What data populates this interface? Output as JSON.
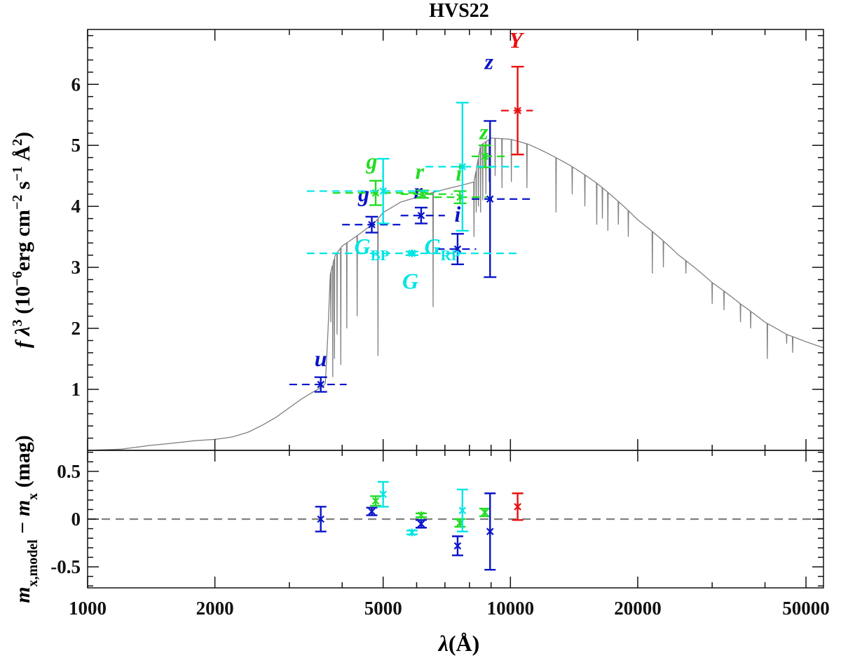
{
  "chart_data": {
    "type": "scatter",
    "title": "HVS22",
    "x_axis": {
      "label_symbol": "λ",
      "label_unit": "(Å)",
      "scale": "log",
      "range": [
        1000,
        55000
      ],
      "major_ticks": [
        1000,
        2000,
        5000,
        10000,
        20000,
        50000
      ],
      "tick_labels": [
        "1000",
        "2000",
        "5000",
        "10000",
        "20000",
        "50000"
      ]
    },
    "top_panel": {
      "ylabel_parts": [
        "f λ",
        "3",
        " (10",
        "−6",
        "erg cm",
        "−2",
        " s",
        "−1",
        " Å",
        "2",
        ")"
      ],
      "ylim": [
        0,
        6.9
      ],
      "ticks": [
        1,
        2,
        3,
        4,
        5,
        6
      ],
      "tick_labels": [
        "1",
        "2",
        "3",
        "4",
        "5",
        "6"
      ],
      "model_spectrum": {
        "color": "#808080",
        "continuum": [
          [
            1000,
            0.0
          ],
          [
            1200,
            0.02
          ],
          [
            1400,
            0.08
          ],
          [
            1600,
            0.12
          ],
          [
            1800,
            0.16
          ],
          [
            2000,
            0.18
          ],
          [
            2200,
            0.22
          ],
          [
            2400,
            0.3
          ],
          [
            2600,
            0.42
          ],
          [
            2800,
            0.55
          ],
          [
            3000,
            0.7
          ],
          [
            3200,
            0.84
          ],
          [
            3400,
            0.95
          ],
          [
            3600,
            1.05
          ],
          [
            3650,
            1.1
          ],
          [
            3700,
            1.9
          ],
          [
            3750,
            2.9
          ],
          [
            3850,
            3.2
          ],
          [
            4000,
            3.35
          ],
          [
            4400,
            3.55
          ],
          [
            4800,
            3.75
          ],
          [
            5000,
            3.9
          ],
          [
            5500,
            4.07
          ],
          [
            6000,
            4.15
          ],
          [
            6500,
            4.22
          ],
          [
            7000,
            4.28
          ],
          [
            7500,
            4.33
          ],
          [
            8000,
            4.38
          ],
          [
            8200,
            4.4
          ],
          [
            8300,
            4.6
          ],
          [
            8500,
            5.0
          ],
          [
            9000,
            5.12
          ],
          [
            10000,
            5.1
          ],
          [
            11000,
            5.02
          ],
          [
            12000,
            4.9
          ],
          [
            14000,
            4.65
          ],
          [
            16000,
            4.38
          ],
          [
            18000,
            4.08
          ],
          [
            20000,
            3.78
          ],
          [
            25000,
            3.2
          ],
          [
            30000,
            2.75
          ],
          [
            35000,
            2.4
          ],
          [
            40000,
            2.1
          ],
          [
            45000,
            1.9
          ],
          [
            50000,
            1.78
          ],
          [
            55000,
            1.68
          ]
        ],
        "absorption_lines": [
          [
            3760,
            2.1
          ],
          [
            3800,
            1.2
          ],
          [
            3835,
            1.5
          ],
          [
            3890,
            1.9
          ],
          [
            3970,
            1.4
          ],
          [
            4102,
            2.0
          ],
          [
            4340,
            2.2
          ],
          [
            4861,
            1.55
          ],
          [
            6563,
            2.35
          ],
          [
            8200,
            3.5
          ],
          [
            8300,
            3.9
          ],
          [
            8400,
            4.0
          ],
          [
            8500,
            3.9
          ],
          [
            8600,
            4.1
          ],
          [
            8750,
            4.2
          ],
          [
            8900,
            4.4
          ],
          [
            9200,
            4.5
          ],
          [
            9550,
            4.3
          ],
          [
            10050,
            4.4
          ],
          [
            10940,
            4.3
          ],
          [
            12820,
            3.9
          ],
          [
            14000,
            4.2
          ],
          [
            15000,
            4.0
          ],
          [
            16000,
            3.7
          ],
          [
            16500,
            3.8
          ],
          [
            17000,
            3.6
          ],
          [
            18000,
            3.7
          ],
          [
            19000,
            3.5
          ],
          [
            21660,
            2.9
          ],
          [
            23000,
            3.0
          ],
          [
            26000,
            2.9
          ],
          [
            30000,
            2.4
          ],
          [
            32000,
            2.3
          ],
          [
            35000,
            2.1
          ],
          [
            37000,
            2.0
          ],
          [
            40510,
            1.5
          ],
          [
            45000,
            1.75
          ],
          [
            46500,
            1.6
          ]
        ]
      },
      "photometry": [
        {
          "band": "u",
          "color": "#0a14c8",
          "x": 3560,
          "y": 1.08,
          "err": 0.12,
          "bw": [
            3000,
            4100
          ],
          "lbl": "u",
          "lbl_pos": [
            3560,
            1.38
          ]
        },
        {
          "band": "g",
          "color": "#0a14c8",
          "x": 4700,
          "y": 3.7,
          "err": 0.13,
          "bw": [
            4000,
            5600
          ],
          "lbl": "g",
          "lbl_pos": [
            4500,
            4.08
          ]
        },
        {
          "band": "r",
          "color": "#0a14c8",
          "x": 6150,
          "y": 3.85,
          "err": 0.13,
          "bw": [
            5500,
            7000
          ],
          "lbl": "r",
          "lbl_pos": [
            6050,
            4.13
          ]
        },
        {
          "band": "i",
          "color": "#0a14c8",
          "x": 7500,
          "y": 3.3,
          "err": 0.25,
          "bw": [
            6700,
            8300
          ],
          "lbl": "i",
          "lbl_pos": [
            7500,
            3.75
          ]
        },
        {
          "band": "z",
          "color": "#0a14c8",
          "x": 8950,
          "y": 4.12,
          "err": 1.28,
          "bw": [
            8100,
            11300
          ],
          "lbl": "z",
          "lbl_pos": [
            8900,
            6.25
          ]
        },
        {
          "band": "g",
          "color": "#22dd22",
          "x": 4800,
          "y": 4.22,
          "err": 0.2,
          "bw": [
            3800,
            6400
          ],
          "lbl": "g",
          "lbl_pos": [
            4700,
            4.62
          ]
        },
        {
          "band": "r",
          "color": "#22dd22",
          "x": 6200,
          "y": 4.2,
          "err": 0.06,
          "bw": [
            5500,
            7300
          ],
          "lbl": "r",
          "lbl_pos": [
            6100,
            4.45
          ]
        },
        {
          "band": "i",
          "color": "#22dd22",
          "x": 7600,
          "y": 4.15,
          "err": 0.1,
          "bw": [
            6600,
            8800
          ],
          "lbl": "i",
          "lbl_pos": [
            7550,
            4.42
          ]
        },
        {
          "band": "z",
          "color": "#22dd22",
          "x": 8700,
          "y": 4.82,
          "err": 0.18,
          "bw": [
            8100,
            9900
          ],
          "lbl": "z",
          "lbl_pos": [
            8650,
            5.1
          ]
        },
        {
          "band": "G_BP",
          "color": "#00e5e5",
          "x": 5000,
          "y": 4.25,
          "err": 0.53,
          "bw": [
            3300,
            6800
          ],
          "lbl": "G",
          "lbl_sub": "BP",
          "lbl_pos": [
            4700,
            3.22
          ]
        },
        {
          "band": "G",
          "color": "#00e5e5",
          "x": 5850,
          "y": 3.23,
          "err": 0.03,
          "bw": [
            3300,
            10500
          ],
          "lbl": "G",
          "lbl_sub": "",
          "lbl_pos": [
            5800,
            2.65
          ]
        },
        {
          "band": "G_RP",
          "color": "#00e5e5",
          "x": 7700,
          "y": 4.65,
          "err": 1.05,
          "bw": [
            6300,
            10500
          ],
          "lbl": "G",
          "lbl_sub": "RP",
          "lbl_pos": [
            6900,
            3.22
          ]
        },
        {
          "band": "Y",
          "color": "#e81010",
          "x": 10400,
          "y": 5.57,
          "err": 0.72,
          "bw": [
            9500,
            11300
          ],
          "lbl": "Y",
          "lbl_pos": [
            10300,
            6.6
          ]
        }
      ]
    },
    "bottom_panel": {
      "ylabel_parts": [
        "m",
        "x,model",
        " − m",
        "x",
        " (mag)"
      ],
      "ylim": [
        -0.72,
        0.72
      ],
      "ticks": [
        -0.5,
        0,
        0.5
      ],
      "tick_labels": [
        "-0.5",
        "0",
        "0.5"
      ],
      "zero_line": 0,
      "residuals": [
        {
          "band": "u SDSS",
          "color": "#0a14c8",
          "x": 3560,
          "y": 0.0,
          "err": 0.13
        },
        {
          "band": "g SDSS",
          "color": "#0a14c8",
          "x": 4700,
          "y": 0.08,
          "err": 0.04
        },
        {
          "band": "g green",
          "color": "#22dd22",
          "x": 4800,
          "y": 0.19,
          "err": 0.05
        },
        {
          "band": "G_BP",
          "color": "#00e5e5",
          "x": 5000,
          "y": 0.26,
          "err": 0.13
        },
        {
          "band": "G",
          "color": "#00e5e5",
          "x": 5850,
          "y": -0.14,
          "err": 0.02
        },
        {
          "band": "r green",
          "color": "#22dd22",
          "x": 6150,
          "y": 0.04,
          "err": 0.02
        },
        {
          "band": "r SDSS",
          "color": "#0a14c8",
          "x": 6150,
          "y": -0.05,
          "err": 0.04
        },
        {
          "band": "i SDSS",
          "color": "#0a14c8",
          "x": 7500,
          "y": -0.28,
          "err": 0.1
        },
        {
          "band": "i green",
          "color": "#22dd22",
          "x": 7600,
          "y": -0.04,
          "err": 0.04
        },
        {
          "band": "G_RP",
          "color": "#00e5e5",
          "x": 7700,
          "y": 0.09,
          "err": 0.22
        },
        {
          "band": "z green",
          "color": "#22dd22",
          "x": 8700,
          "y": 0.07,
          "err": 0.04
        },
        {
          "band": "z SDSS",
          "color": "#0a14c8",
          "x": 8950,
          "y": -0.13,
          "err": 0.4
        },
        {
          "band": "Y",
          "color": "#e81010",
          "x": 10400,
          "y": 0.13,
          "err": 0.14
        }
      ]
    }
  }
}
